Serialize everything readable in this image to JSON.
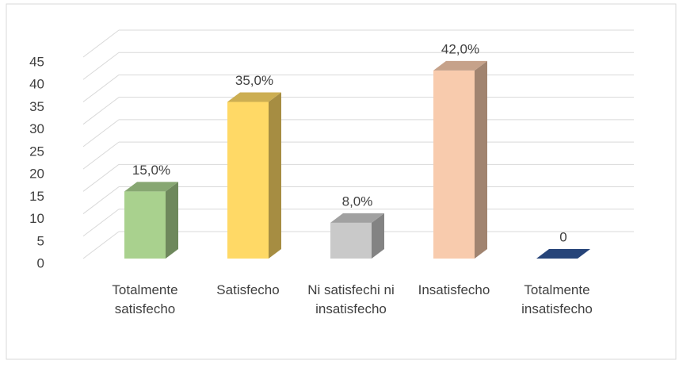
{
  "chart_data": {
    "type": "bar3d",
    "categories": [
      "Totalmente satisfecho",
      "Satisfecho",
      "Ni satisfechi ni insatisfecho",
      "Insatisfecho",
      "Totalmente insatisfecho"
    ],
    "values": [
      15,
      35,
      8,
      42,
      0
    ],
    "value_labels": [
      "15,0%",
      "35,0%",
      "8,0%",
      "42,0%",
      "0"
    ],
    "colors": [
      "#a9d18e",
      "#ffd966",
      "#c9c9c9",
      "#f8cbad",
      "#2f5597"
    ],
    "ylim": [
      0,
      45
    ],
    "yticks": [
      0,
      5,
      10,
      15,
      20,
      25,
      30,
      35,
      40,
      45
    ],
    "grid": true
  }
}
